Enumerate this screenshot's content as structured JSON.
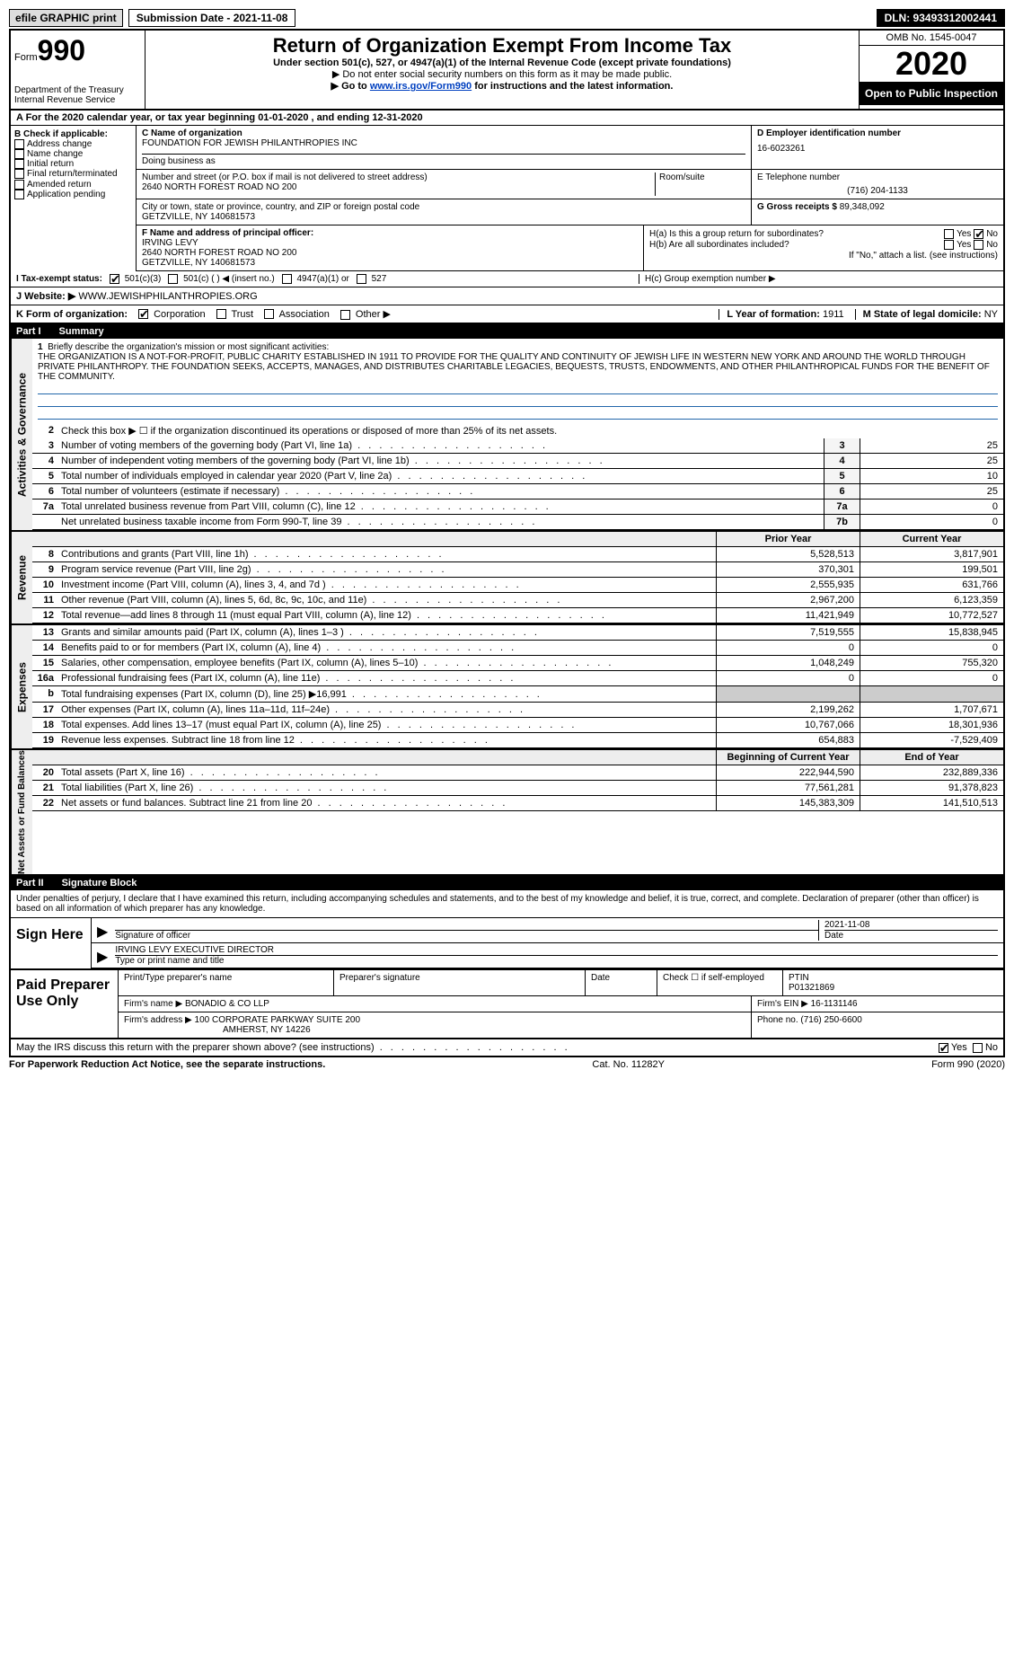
{
  "topbar": {
    "efile": "efile GRAPHIC print",
    "submission_label": "Submission Date - 2021-11-08",
    "dln": "DLN: 93493312002441"
  },
  "header": {
    "form_word": "Form",
    "form_num": "990",
    "dept": "Department of the Treasury\nInternal Revenue Service",
    "title": "Return of Organization Exempt From Income Tax",
    "subtitle": "Under section 501(c), 527, or 4947(a)(1) of the Internal Revenue Code (except private foundations)",
    "note1": "▶ Do not enter social security numbers on this form as it may be made public.",
    "note2_pre": "▶ Go to ",
    "note2_link": "www.irs.gov/Form990",
    "note2_post": " for instructions and the latest information.",
    "omb": "OMB No. 1545-0047",
    "year": "2020",
    "open": "Open to Public Inspection"
  },
  "row_a": "A   For the 2020 calendar year, or tax year beginning 01-01-2020   , and ending 12-31-2020",
  "box_b": {
    "label": "B Check if applicable:",
    "items": [
      "Address change",
      "Name change",
      "Initial return",
      "Final return/terminated",
      "Amended return",
      "Application pending"
    ]
  },
  "box_c": {
    "label_c": "C Name of organization",
    "org_name": "FOUNDATION FOR JEWISH PHILANTHROPIES INC",
    "dba_label": "Doing business as",
    "street_label": "Number and street (or P.O. box if mail is not delivered to street address)",
    "street": "2640 NORTH FOREST ROAD NO 200",
    "suite_label": "Room/suite",
    "city_label": "City or town, state or province, country, and ZIP or foreign postal code",
    "city": "GETZVILLE, NY  140681573"
  },
  "box_d": {
    "label": "D Employer identification number",
    "value": "16-6023261"
  },
  "box_e": {
    "label": "E Telephone number",
    "value": "(716) 204-1133"
  },
  "box_g": {
    "label": "G Gross receipts $",
    "value": "89,348,092"
  },
  "box_f": {
    "label": "F  Name and address of principal officer:",
    "name": "IRVING LEVY",
    "addr1": "2640 NORTH FOREST ROAD NO 200",
    "addr2": "GETZVILLE, NY  140681573"
  },
  "box_h": {
    "ha": "H(a)  Is this a group return for subordinates?",
    "hb": "H(b)  Are all subordinates included?",
    "hb_note": "If \"No,\" attach a list. (see instructions)",
    "hc": "H(c)  Group exemption number ▶",
    "yes": "Yes",
    "no": "No"
  },
  "row_i": {
    "label": "I   Tax-exempt status:",
    "opt1": "501(c)(3)",
    "opt2": "501(c) (  ) ◀ (insert no.)",
    "opt3": "4947(a)(1) or",
    "opt4": "527"
  },
  "row_j": {
    "label": "J   Website: ▶",
    "value": "WWW.JEWISHPHILANTHROPIES.ORG"
  },
  "row_k": {
    "label": "K Form of organization:",
    "opts": [
      "Corporation",
      "Trust",
      "Association",
      "Other ▶"
    ],
    "l_label": "L Year of formation:",
    "l_val": "1911",
    "m_label": "M State of legal domicile:",
    "m_val": "NY"
  },
  "part1": {
    "header_num": "Part I",
    "header_text": "Summary",
    "section_ag": "Activities & Governance",
    "section_rev": "Revenue",
    "section_exp": "Expenses",
    "section_net": "Net Assets or Fund Balances",
    "line1_label": "Briefly describe the organization's mission or most significant activities:",
    "mission": "THE ORGANIZATION IS A NOT-FOR-PROFIT, PUBLIC CHARITY ESTABLISHED IN 1911 TO PROVIDE FOR THE QUALITY AND CONTINUITY OF JEWISH LIFE IN WESTERN NEW YORK AND AROUND THE WORLD THROUGH PRIVATE PHILANTHROPY. THE FOUNDATION SEEKS, ACCEPTS, MANAGES, AND DISTRIBUTES CHARITABLE LEGACIES, BEQUESTS, TRUSTS, ENDOWMENTS, AND OTHER PHILANTHROPICAL FUNDS FOR THE BENEFIT OF THE COMMUNITY.",
    "line2": "Check this box ▶ ☐ if the organization discontinued its operations or disposed of more than 25% of its net assets.",
    "ag_rows": [
      {
        "n": "3",
        "t": "Number of voting members of the governing body (Part VI, line 1a)",
        "b": "3",
        "v": "25"
      },
      {
        "n": "4",
        "t": "Number of independent voting members of the governing body (Part VI, line 1b)",
        "b": "4",
        "v": "25"
      },
      {
        "n": "5",
        "t": "Total number of individuals employed in calendar year 2020 (Part V, line 2a)",
        "b": "5",
        "v": "10"
      },
      {
        "n": "6",
        "t": "Total number of volunteers (estimate if necessary)",
        "b": "6",
        "v": "25"
      },
      {
        "n": "7a",
        "t": "Total unrelated business revenue from Part VIII, column (C), line 12",
        "b": "7a",
        "v": "0"
      },
      {
        "n": "",
        "t": "Net unrelated business taxable income from Form 990-T, line 39",
        "b": "7b",
        "v": "0"
      }
    ],
    "col_prior": "Prior Year",
    "col_current": "Current Year",
    "rev_rows": [
      {
        "n": "8",
        "t": "Contributions and grants (Part VIII, line 1h)",
        "p": "5,528,513",
        "c": "3,817,901"
      },
      {
        "n": "9",
        "t": "Program service revenue (Part VIII, line 2g)",
        "p": "370,301",
        "c": "199,501"
      },
      {
        "n": "10",
        "t": "Investment income (Part VIII, column (A), lines 3, 4, and 7d )",
        "p": "2,555,935",
        "c": "631,766"
      },
      {
        "n": "11",
        "t": "Other revenue (Part VIII, column (A), lines 5, 6d, 8c, 9c, 10c, and 11e)",
        "p": "2,967,200",
        "c": "6,123,359"
      },
      {
        "n": "12",
        "t": "Total revenue—add lines 8 through 11 (must equal Part VIII, column (A), line 12)",
        "p": "11,421,949",
        "c": "10,772,527"
      }
    ],
    "exp_rows": [
      {
        "n": "13",
        "t": "Grants and similar amounts paid (Part IX, column (A), lines 1–3 )",
        "p": "7,519,555",
        "c": "15,838,945"
      },
      {
        "n": "14",
        "t": "Benefits paid to or for members (Part IX, column (A), line 4)",
        "p": "0",
        "c": "0"
      },
      {
        "n": "15",
        "t": "Salaries, other compensation, employee benefits (Part IX, column (A), lines 5–10)",
        "p": "1,048,249",
        "c": "755,320"
      },
      {
        "n": "16a",
        "t": "Professional fundraising fees (Part IX, column (A), line 11e)",
        "p": "0",
        "c": "0"
      },
      {
        "n": "b",
        "t": "Total fundraising expenses (Part IX, column (D), line 25) ▶16,991",
        "p": "",
        "c": "",
        "gray": true
      },
      {
        "n": "17",
        "t": "Other expenses (Part IX, column (A), lines 11a–11d, 11f–24e)",
        "p": "2,199,262",
        "c": "1,707,671"
      },
      {
        "n": "18",
        "t": "Total expenses. Add lines 13–17 (must equal Part IX, column (A), line 25)",
        "p": "10,767,066",
        "c": "18,301,936"
      },
      {
        "n": "19",
        "t": "Revenue less expenses. Subtract line 18 from line 12",
        "p": "654,883",
        "c": "-7,529,409"
      }
    ],
    "col_begin": "Beginning of Current Year",
    "col_end": "End of Year",
    "net_rows": [
      {
        "n": "20",
        "t": "Total assets (Part X, line 16)",
        "p": "222,944,590",
        "c": "232,889,336"
      },
      {
        "n": "21",
        "t": "Total liabilities (Part X, line 26)",
        "p": "77,561,281",
        "c": "91,378,823"
      },
      {
        "n": "22",
        "t": "Net assets or fund balances. Subtract line 21 from line 20",
        "p": "145,383,309",
        "c": "141,510,513"
      }
    ]
  },
  "part2": {
    "header_num": "Part II",
    "header_text": "Signature Block",
    "decl": "Under penalties of perjury, I declare that I have examined this return, including accompanying schedules and statements, and to the best of my knowledge and belief, it is true, correct, and complete. Declaration of preparer (other than officer) is based on all information of which preparer has any knowledge.",
    "sign_here": "Sign Here",
    "sig_officer": "Signature of officer",
    "sig_date": "Date",
    "sig_date_val": "2021-11-08",
    "name_title": "IRVING LEVY  EXECUTIVE DIRECTOR",
    "name_title_label": "Type or print name and title"
  },
  "paid": {
    "label": "Paid Preparer Use Only",
    "row1": {
      "c1": "Print/Type preparer's name",
      "c2": "Preparer's signature",
      "c3": "Date",
      "c4": "Check ☐ if self-employed",
      "c5_label": "PTIN",
      "c5": "P01321869"
    },
    "row2": {
      "c1": "Firm's name      ▶",
      "c1v": "BONADIO & CO LLP",
      "c2": "Firm's EIN ▶",
      "c2v": "16-1131146"
    },
    "row3": {
      "c1": "Firm's address ▶",
      "c1v": "100 CORPORATE PARKWAY SUITE 200",
      "c1v2": "AMHERST, NY  14226",
      "c2": "Phone no.",
      "c2v": "(716) 250-6600"
    }
  },
  "discuss": {
    "q": "May the IRS discuss this return with the preparer shown above? (see instructions)",
    "yes": "Yes",
    "no": "No"
  },
  "footer": {
    "left": "For Paperwork Reduction Act Notice, see the separate instructions.",
    "mid": "Cat. No. 11282Y",
    "right": "Form 990 (2020)"
  }
}
